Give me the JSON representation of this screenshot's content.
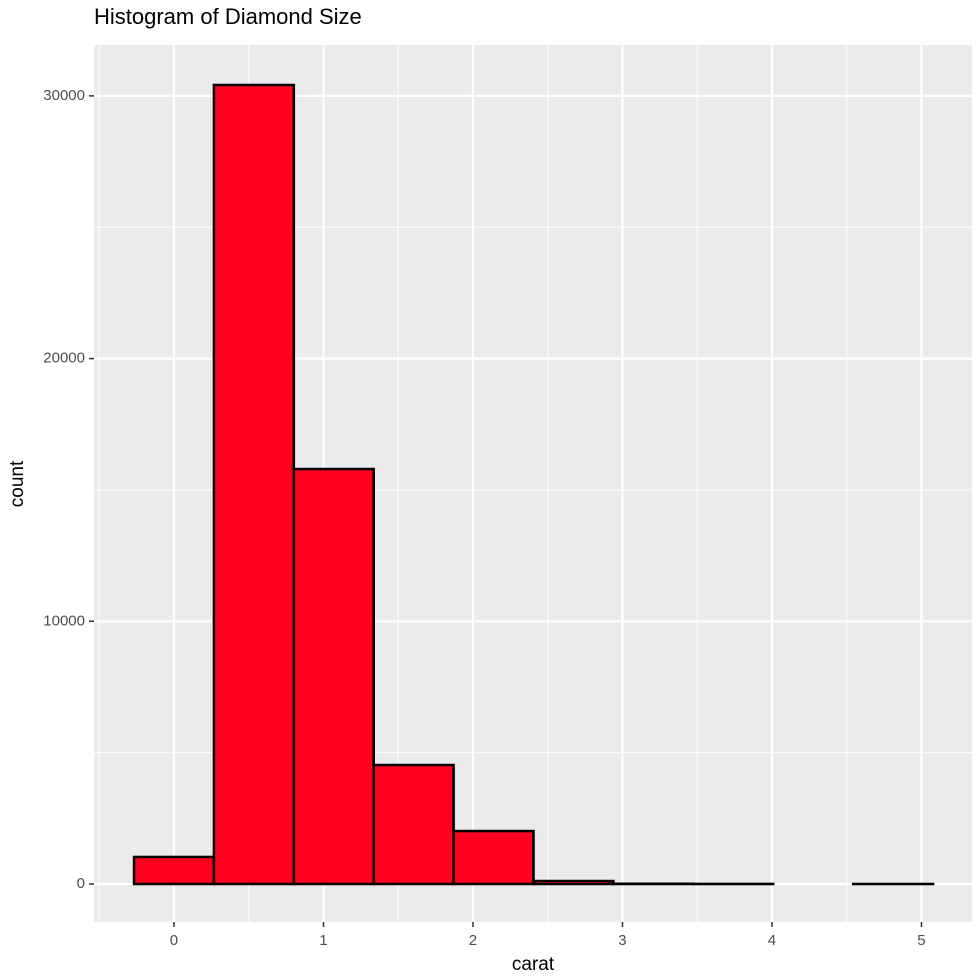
{
  "chart_data": {
    "type": "histogram",
    "title": "Histogram of Diamond Size",
    "x_label": "carat",
    "y_label": "count",
    "bins": [
      -0.2672,
      0.2672,
      0.8017,
      1.3361,
      1.8706,
      2.405,
      2.9394,
      3.4739,
      4.0083,
      4.5428,
      5.0772
    ],
    "counts": [
      1030,
      30415,
      15797,
      4530,
      2017,
      114,
      10,
      3,
      0,
      1
    ],
    "color": "#ff001e",
    "edge_color": "#000000",
    "xlim": [
      -0.535,
      5.338
    ],
    "ylim": [
      -1446,
      31937
    ],
    "xticks": [
      0,
      1,
      2,
      3,
      4,
      5
    ],
    "yticks": [
      0,
      10000,
      20000,
      30000
    ],
    "grid": true,
    "minor_grid": true
  }
}
